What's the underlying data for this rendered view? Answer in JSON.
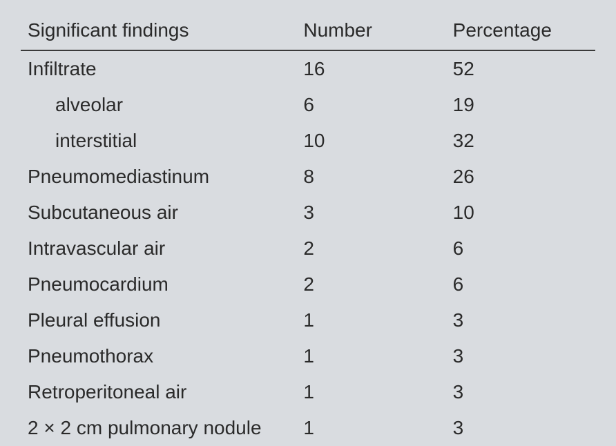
{
  "table": {
    "headers": {
      "findings": "Significant findings",
      "number": "Number",
      "percentage": "Percentage"
    },
    "rows": [
      {
        "label": "Infiltrate",
        "number": "16",
        "percentage": "52",
        "indent": false
      },
      {
        "label": "alveolar",
        "number": "6",
        "percentage": "19",
        "indent": true
      },
      {
        "label": "interstitial",
        "number": "10",
        "percentage": "32",
        "indent": true
      },
      {
        "label": "Pneumomediastinum",
        "number": "8",
        "percentage": "26",
        "indent": false
      },
      {
        "label": "Subcutaneous air",
        "number": "3",
        "percentage": "10",
        "indent": false
      },
      {
        "label": "Intravascular air",
        "number": "2",
        "percentage": "6",
        "indent": false
      },
      {
        "label": "Pneumocardium",
        "number": "2",
        "percentage": "6",
        "indent": false
      },
      {
        "label": "Pleural effusion",
        "number": "1",
        "percentage": "3",
        "indent": false
      },
      {
        "label": "Pneumothorax",
        "number": "1",
        "percentage": "3",
        "indent": false
      },
      {
        "label": "Retroperitoneal air",
        "number": "1",
        "percentage": "3",
        "indent": false
      },
      {
        "label": "2 × 2 cm pulmonary nodule",
        "number": "1",
        "percentage": "3",
        "indent": false
      }
    ],
    "styling": {
      "background_color": "#d9dce0",
      "text_color": "#2a2a2a",
      "border_color": "#3a3a3a",
      "font_size": 28,
      "header_font_size": 28
    }
  }
}
